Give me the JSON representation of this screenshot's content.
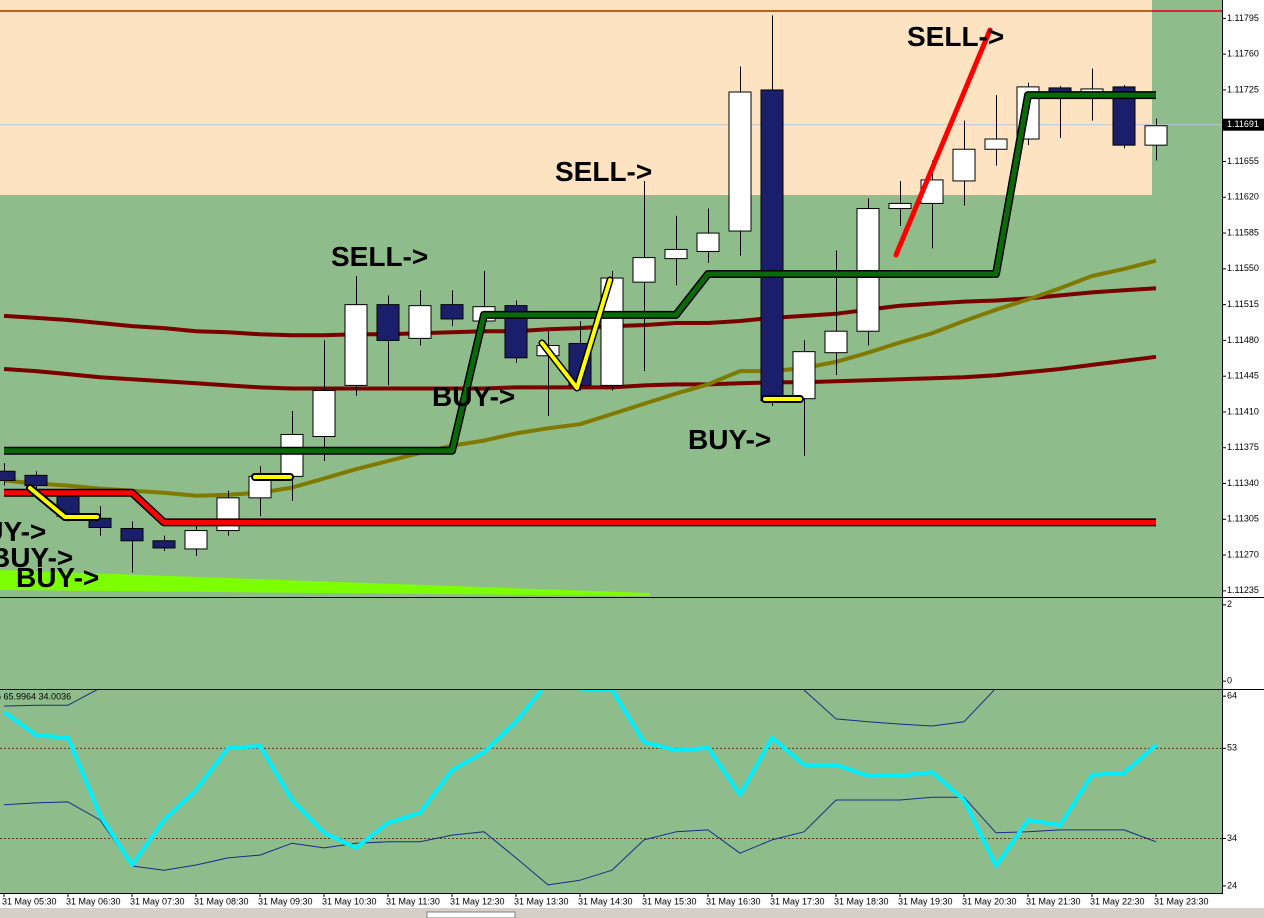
{
  "chart_data": [
    {
      "type": "candlestick",
      "categories": [
        "31 May 05:30",
        null,
        "31 May 06:30",
        null,
        "31 May 07:30",
        null,
        "31 May 08:30",
        null,
        "31 May 09:30",
        null,
        "31 May 10:30",
        null,
        "31 May 11:30",
        null,
        "31 May 12:30",
        null,
        "31 May 13:30",
        null,
        "31 May 14:30",
        null,
        "31 May 15:30",
        null,
        "31 May 16:30",
        null,
        "31 May 17:30",
        null,
        "31 May 18:30",
        null,
        "31 May 19:30",
        null,
        "31 May 20:30",
        null,
        "31 May 21:30",
        null,
        "31 May 22:30",
        null,
        "31 May 23:30"
      ],
      "open": [
        1.11352,
        1.11348,
        1.11328,
        1.11306,
        1.11296,
        1.11284,
        1.11276,
        1.11294,
        1.11326,
        1.11347,
        1.11386,
        1.11436,
        1.11515,
        1.11482,
        1.11515,
        1.11499,
        1.11514,
        1.11465,
        1.11477,
        1.11436,
        1.11537,
        1.1156,
        1.11567,
        1.11587,
        1.11725,
        1.11423,
        1.11468,
        1.11489,
        1.11609,
        1.11614,
        1.11636,
        1.11667,
        1.11677,
        1.11727,
        1.11722,
        1.11728,
        1.11671
      ],
      "high": [
        1.1136,
        1.11352,
        1.11333,
        1.11318,
        1.11303,
        1.11289,
        1.11299,
        1.11333,
        1.11357,
        1.11411,
        1.1148,
        1.11543,
        1.11524,
        1.11529,
        1.11529,
        1.11548,
        1.11519,
        1.11489,
        1.11499,
        1.11548,
        1.11636,
        1.11602,
        1.11609,
        1.11748,
        1.11798,
        1.1148,
        1.11568,
        1.11619,
        1.11636,
        1.11656,
        1.11695,
        1.1172,
        1.11732,
        1.11729,
        1.11746,
        1.1173,
        1.11697
      ],
      "low": [
        1.11338,
        1.11333,
        1.11303,
        1.11289,
        1.11253,
        1.11274,
        1.11269,
        1.11289,
        1.11308,
        1.11323,
        1.11362,
        1.11426,
        1.11436,
        1.11475,
        1.11494,
        1.11489,
        1.11458,
        1.11406,
        1.11431,
        1.11431,
        1.1145,
        1.11534,
        1.11556,
        1.11563,
        1.11416,
        1.11367,
        1.11446,
        1.11475,
        1.11592,
        1.1157,
        1.11612,
        1.11651,
        1.11671,
        1.11678,
        1.11695,
        1.11668,
        1.11656
      ],
      "close": [
        1.11343,
        1.11338,
        1.11308,
        1.11297,
        1.11284,
        1.11277,
        1.11294,
        1.11326,
        1.11347,
        1.11388,
        1.11431,
        1.11515,
        1.1148,
        1.11514,
        1.11501,
        1.11513,
        1.11463,
        1.11475,
        1.11436,
        1.11541,
        1.11561,
        1.11569,
        1.11585,
        1.11723,
        1.11421,
        1.11469,
        1.11489,
        1.11609,
        1.11614,
        1.11637,
        1.11667,
        1.11677,
        1.11728,
        1.11718,
        1.11726,
        1.11671,
        1.1169
      ],
      "bull_color": "#ffffff",
      "bear_color": "#1b1f6b",
      "lines": [
        {
          "color": "#7a0000",
          "values": [
            1.11504,
            1.11502,
            1.115,
            1.11497,
            1.11494,
            1.11492,
            1.11489,
            1.11488,
            1.11486,
            1.11485,
            1.11485,
            1.11486,
            1.11486,
            1.11487,
            1.11488,
            1.11489,
            1.11489,
            1.11491,
            1.11492,
            1.11494,
            1.11495,
            1.11497,
            1.11497,
            1.11499,
            1.11502,
            1.11504,
            1.11506,
            1.1151,
            1.11514,
            1.11516,
            1.11518,
            1.11519,
            1.11521,
            1.11524,
            1.11527,
            1.11529,
            1.11531
          ]
        },
        {
          "color": "#7a0000",
          "values": [
            1.11452,
            1.1145,
            1.11447,
            1.11444,
            1.11442,
            1.1144,
            1.11438,
            1.11436,
            1.11434,
            1.11433,
            1.11433,
            1.11433,
            1.11433,
            1.11433,
            1.11433,
            1.11433,
            1.11434,
            1.11434,
            1.11434,
            1.11434,
            1.11436,
            1.11437,
            1.11437,
            1.11438,
            1.11439,
            1.11439,
            1.1144,
            1.11441,
            1.11442,
            1.11443,
            1.11444,
            1.11446,
            1.11449,
            1.11452,
            1.11456,
            1.1146,
            1.11464
          ]
        },
        {
          "color": "#807a00",
          "values": [
            1.11343,
            1.1134,
            1.11338,
            1.11335,
            1.11333,
            1.11331,
            1.11328,
            1.11329,
            1.11331,
            1.11336,
            1.11345,
            1.11354,
            1.11362,
            1.1137,
            1.11377,
            1.11382,
            1.11389,
            1.11394,
            1.11398,
            1.11408,
            1.11418,
            1.11428,
            1.11437,
            1.1145,
            1.1145,
            1.11453,
            1.11459,
            1.11468,
            1.11478,
            1.11487,
            1.11499,
            1.1151,
            1.1152,
            1.11531,
            1.11543,
            1.1155,
            1.11558
          ]
        },
        {
          "color": "#0a6a0a",
          "values": [
            1.11372,
            1.11372,
            1.11372,
            1.11372,
            1.11372,
            1.11372,
            1.11372,
            1.11372,
            1.11372,
            1.11372,
            1.11372,
            1.11372,
            1.11372,
            1.11372,
            1.11372,
            1.11505,
            1.11505,
            1.11505,
            1.11505,
            1.11505,
            1.11505,
            1.11505,
            1.11545,
            1.11545,
            1.11545,
            1.11545,
            1.11545,
            1.11545,
            1.11545,
            1.11545,
            1.11545,
            1.11545,
            1.1172,
            1.1172,
            1.1172,
            1.1172,
            1.1172
          ]
        },
        {
          "color": "#ff0000",
          "values": [
            1.11331,
            1.11331,
            1.11331,
            1.11331,
            1.11331,
            1.11302,
            1.11302,
            1.11302,
            1.11302,
            1.11302,
            1.11302,
            1.11302,
            1.11302,
            1.11302,
            1.11302,
            1.11302,
            1.11302,
            1.11302,
            1.11302,
            1.11302,
            1.11302,
            1.11302,
            1.11302,
            1.11302,
            1.11302,
            1.11302,
            1.11302,
            1.11302,
            1.11302,
            1.11302,
            1.11302,
            1.11302,
            1.11302,
            1.11302,
            1.11302,
            1.11302,
            1.11302
          ]
        }
      ],
      "ylim": [
        1.11229,
        1.11813
      ],
      "yticks": [
        1.11795,
        {
          "value": 1.1176,
          "label": "1.11760"
        },
        1.11725,
        1.11655,
        {
          "value": 1.1162,
          "label": "1.11620"
        },
        1.11585,
        {
          "value": 1.1155,
          "label": "1.11550"
        },
        1.11515,
        {
          "value": 1.1148,
          "label": "1.11480"
        },
        1.11445,
        {
          "value": 1.1141,
          "label": "1.11410"
        },
        1.11375,
        {
          "value": 1.1134,
          "label": "1.11340"
        },
        1.11305,
        {
          "value": 1.1127,
          "label": "1.11270"
        },
        1.11235
      ],
      "current_price": 1.11691,
      "annotations": [
        "SELL->",
        "SELL->",
        "SELL->",
        "BUY->",
        "BUY->",
        "BUY->",
        "BUY->",
        "BUY->"
      ]
    },
    {
      "type": "indicator",
      "ylim": [
        -0.18,
        2.18
      ],
      "yticks": [
        2,
        0
      ]
    },
    {
      "type": "line",
      "legend": "646 65.9964 34.0036",
      "ylim": [
        22.5,
        65.3
      ],
      "yticks": [
        64,
        53,
        34,
        24
      ],
      "levels": [
        53,
        34
      ],
      "lines": [
        {
          "color": "#1a2a8a",
          "values": [
            61.9,
            62.1,
            62.1,
            65.7,
            null,
            null,
            null,
            null,
            null,
            null,
            null,
            null,
            null,
            null,
            null,
            null,
            null,
            null,
            null,
            null,
            null,
            null,
            null,
            null,
            null,
            65.3,
            59.2,
            58.6,
            58.1,
            57.7,
            58.6,
            65.7,
            null,
            null,
            null,
            null,
            null
          ]
        },
        {
          "color": "#1a2a8a",
          "values": [
            41.1,
            41.5,
            41.7,
            37.9,
            28.2,
            27.3,
            28.4,
            29.9,
            30.5,
            33.0,
            32.0,
            33.0,
            33.3,
            33.3,
            34.7,
            35.4,
            29.9,
            24.2,
            25.2,
            27.3,
            33.7,
            35.4,
            35.8,
            30.9,
            33.7,
            35.4,
            42.1,
            42.1,
            42.1,
            42.7,
            42.7,
            35.2,
            35.4,
            35.8,
            35.8,
            35.8,
            33.3
          ]
        },
        {
          "color": "#00f0ff",
          "values": [
            60.7,
            55.8,
            55.2,
            38.9,
            28.4,
            37.9,
            44.2,
            53.1,
            53.5,
            42.1,
            35.2,
            32.0,
            37.3,
            39.4,
            48.4,
            52.2,
            58.6,
            67,
            65.6,
            65.3,
            54.3,
            52.6,
            53.1,
            43.2,
            55.2,
            49.5,
            49.5,
            47.2,
            47.2,
            48.0,
            42.1,
            28.2,
            37.9,
            36.8,
            47.4,
            47.8,
            53.7
          ]
        }
      ]
    }
  ]
}
